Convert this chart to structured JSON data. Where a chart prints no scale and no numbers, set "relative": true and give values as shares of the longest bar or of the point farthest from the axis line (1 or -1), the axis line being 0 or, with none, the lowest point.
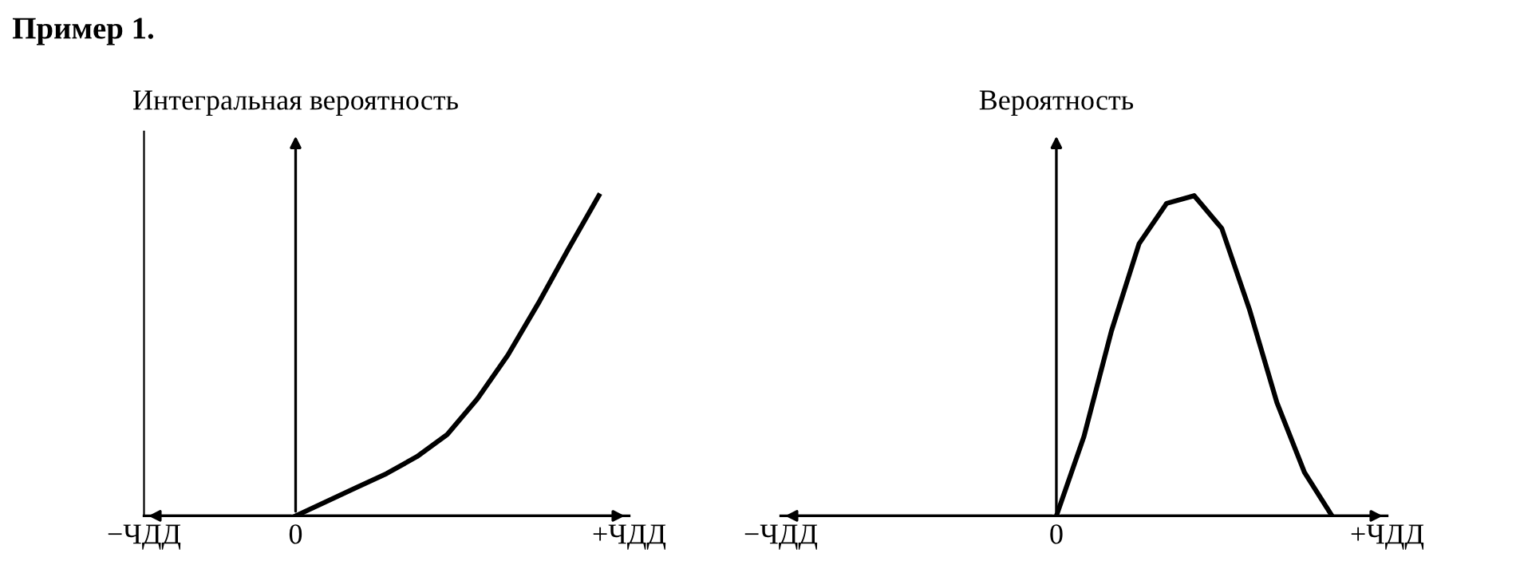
{
  "chart_data": [
    {
      "type": "line",
      "title": "Пример 1.",
      "ylabel": "Интегральная вероятность",
      "relative": true,
      "tick_labels": "x",
      "grid": false,
      "marker": "none",
      "line_style": "solid",
      "categories": [
        "−ЧДД",
        null,
        null,
        null,
        null,
        "0",
        null,
        null,
        null,
        null,
        null,
        null,
        null,
        null,
        null,
        null,
        "+ЧДД"
      ],
      "series": [
        {
          "color": "#000000",
          "values": [
            null,
            null,
            null,
            null,
            null,
            0,
            0.044,
            0.088,
            0.132,
            0.185,
            0.254,
            0.366,
            0.502,
            0.663,
            0.834,
            1,
            null
          ]
        }
      ]
    },
    {
      "type": "line",
      "ylabel": "Вероятность",
      "relative": true,
      "tick_labels": "x",
      "grid": false,
      "marker": "none",
      "line_style": "solid",
      "categories": [
        "−ЧДД",
        null,
        null,
        null,
        null,
        null,
        null,
        null,
        null,
        null,
        "0",
        null,
        null,
        null,
        null,
        null,
        null,
        null,
        null,
        null,
        null,
        null,
        "+ЧДД"
      ],
      "series": [
        {
          "color": "#000000",
          "values": [
            null,
            null,
            null,
            null,
            null,
            null,
            null,
            null,
            null,
            null,
            0,
            0.248,
            0.578,
            0.85,
            0.976,
            1,
            0.898,
            0.646,
            0.354,
            0.136,
            0,
            null,
            null
          ]
        }
      ]
    }
  ]
}
